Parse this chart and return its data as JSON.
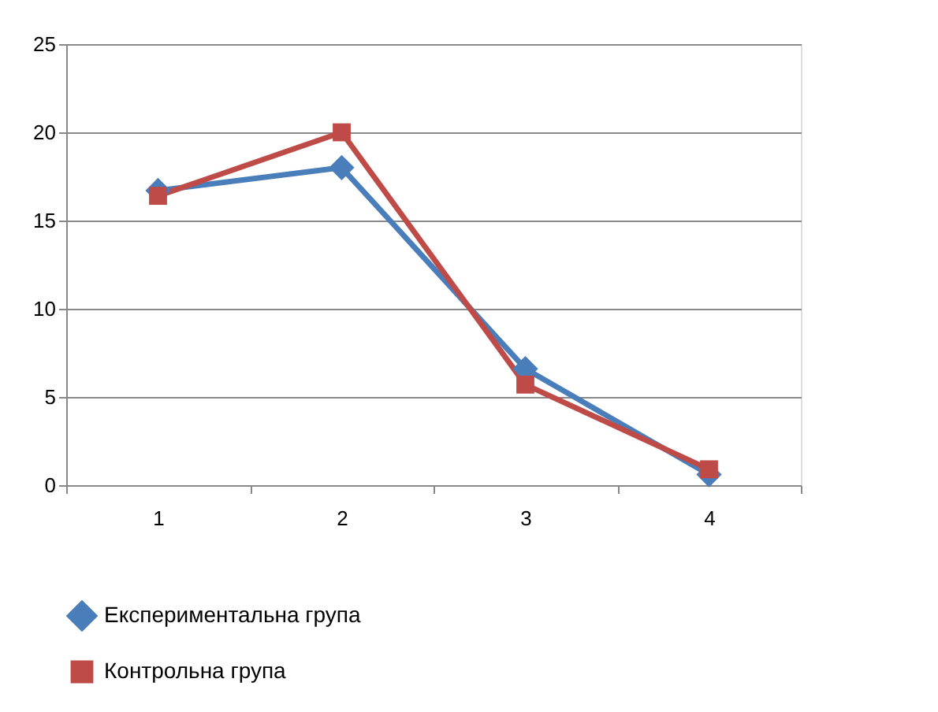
{
  "chart_data": {
    "type": "line",
    "categories": [
      "1",
      "2",
      "3",
      "4"
    ],
    "series": [
      {
        "name": "Експериментальна група",
        "color": "#4a7ebb",
        "marker": "diamond",
        "values": [
          16.7,
          18.0,
          6.6,
          0.6
        ]
      },
      {
        "name": "Контрольна група",
        "color": "#be4b48",
        "marker": "square",
        "values": [
          16.4,
          20.0,
          5.7,
          0.9
        ]
      }
    ],
    "ylim": [
      0,
      25
    ],
    "yticks": [
      0,
      5,
      10,
      15,
      20,
      25
    ],
    "grid": "y",
    "legend": "bottom",
    "line_style": "solid"
  }
}
